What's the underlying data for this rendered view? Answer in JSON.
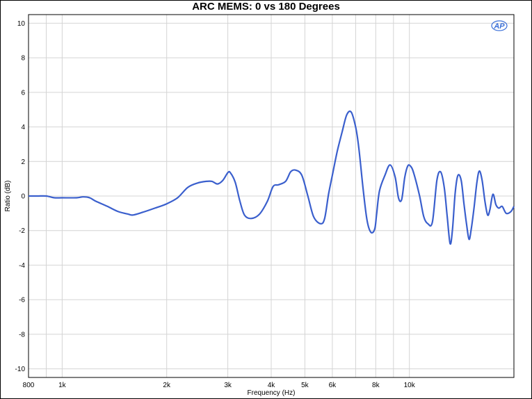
{
  "chart_data": {
    "type": "line",
    "title": "ARC MEMS: 0 vs 180 Degrees",
    "xlabel": "Frequency (Hz)",
    "ylabel": "Ratio (dB)",
    "x_scale": "log",
    "xlim": [
      800,
      20000
    ],
    "ylim": [
      -10.5,
      10.5
    ],
    "grid": true,
    "x_ticks": [
      {
        "value": 800,
        "label": "800"
      },
      {
        "value": 1000,
        "label": "1k"
      },
      {
        "value": 2000,
        "label": "2k"
      },
      {
        "value": 3000,
        "label": "3k"
      },
      {
        "value": 4000,
        "label": "4k"
      },
      {
        "value": 5000,
        "label": "5k"
      },
      {
        "value": 6000,
        "label": "6k"
      },
      {
        "value": 8000,
        "label": "8k"
      },
      {
        "value": 10000,
        "label": "10k"
      }
    ],
    "x_minor_gridlines": [
      900,
      7000,
      9000,
      20000
    ],
    "y_ticks": [
      {
        "value": 10,
        "label": "10"
      },
      {
        "value": 8,
        "label": "8"
      },
      {
        "value": 6,
        "label": "6"
      },
      {
        "value": 4,
        "label": "4"
      },
      {
        "value": 2,
        "label": "2"
      },
      {
        "value": 0,
        "label": "0"
      },
      {
        "value": -2,
        "label": "-2"
      },
      {
        "value": -4,
        "label": "-4"
      },
      {
        "value": -6,
        "label": "-6"
      },
      {
        "value": -8,
        "label": "-8"
      },
      {
        "value": -10,
        "label": "-10"
      }
    ],
    "logo": "AP",
    "series": [
      {
        "color": "#3a5fcd",
        "x": [
          800,
          850,
          900,
          950,
          1000,
          1100,
          1150,
          1200,
          1250,
          1350,
          1450,
          1550,
          1600,
          1700,
          1850,
          2000,
          2150,
          2300,
          2450,
          2600,
          2700,
          2800,
          2900,
          3000,
          3050,
          3150,
          3250,
          3350,
          3500,
          3700,
          3900,
          4050,
          4200,
          4400,
          4550,
          4700,
          4900,
          5100,
          5300,
          5550,
          5700,
          5850,
          6000,
          6200,
          6400,
          6600,
          6800,
          7000,
          7150,
          7350,
          7550,
          7750,
          7950,
          8050,
          8200,
          8500,
          8800,
          9100,
          9300,
          9500,
          9700,
          9900,
          10100,
          10300,
          10700,
          11000,
          11300,
          11650,
          12000,
          12300,
          12600,
          12850,
          13100,
          13300,
          13550,
          13800,
          14100,
          14350,
          14600,
          14850,
          15050,
          15350,
          15650,
          15900,
          16200,
          16500,
          16800,
          17050,
          17400,
          17750,
          18100,
          18500,
          19000,
          19600,
          20000
        ],
        "y": [
          0.0,
          0.0,
          0.0,
          -0.1,
          -0.1,
          -0.1,
          -0.05,
          -0.1,
          -0.3,
          -0.6,
          -0.9,
          -1.05,
          -1.1,
          -0.95,
          -0.7,
          -0.45,
          -0.1,
          0.5,
          0.75,
          0.85,
          0.85,
          0.7,
          0.9,
          1.35,
          1.35,
          0.8,
          -0.3,
          -1.1,
          -1.3,
          -1.05,
          -0.3,
          0.55,
          0.65,
          0.85,
          1.4,
          1.5,
          1.2,
          0.0,
          -1.2,
          -1.6,
          -1.3,
          0.1,
          1.2,
          2.6,
          3.7,
          4.7,
          4.85,
          4.0,
          2.8,
          0.5,
          -1.4,
          -2.1,
          -1.9,
          -1.0,
          0.3,
          1.2,
          1.8,
          1.1,
          -0.1,
          -0.2,
          1.1,
          1.75,
          1.7,
          1.3,
          0.0,
          -1.2,
          -1.6,
          -1.5,
          0.9,
          1.4,
          0.5,
          -1.2,
          -2.75,
          -2.0,
          0.2,
          1.2,
          0.9,
          -0.4,
          -1.6,
          -2.5,
          -2.0,
          -0.7,
          0.8,
          1.45,
          0.9,
          -0.3,
          -1.1,
          -0.8,
          0.1,
          -0.5,
          -0.7,
          -0.6,
          -1.0,
          -0.9,
          -0.6
        ]
      }
    ]
  }
}
